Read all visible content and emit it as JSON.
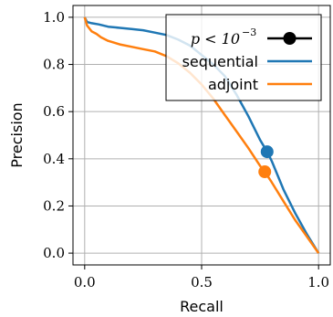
{
  "chart_data": {
    "type": "line",
    "title": "",
    "xlabel": "Recall",
    "ylabel": "Precision",
    "xlim": [
      -0.05,
      1.05
    ],
    "ylim": [
      -0.05,
      1.05
    ],
    "xticks": [
      0.0,
      0.5,
      1.0
    ],
    "xtick_labels": [
      "0.0",
      "0.5",
      "1.0"
    ],
    "yticks": [
      0.0,
      0.2,
      0.4,
      0.6,
      0.8,
      1.0
    ],
    "ytick_labels": [
      "0.0",
      "0.2",
      "0.4",
      "0.6",
      "0.8",
      "1.0"
    ],
    "grid": true,
    "legend_position": "top-right",
    "legend_marker": {
      "label": "p < 10",
      "superscript": "−3"
    },
    "series": [
      {
        "name": "sequential",
        "color": "#1f77b4",
        "x": [
          0.0,
          0.01,
          0.03,
          0.06,
          0.1,
          0.15,
          0.2,
          0.25,
          0.3,
          0.35,
          0.4,
          0.45,
          0.5,
          0.55,
          0.6,
          0.65,
          0.7,
          0.75,
          0.78,
          0.8,
          0.85,
          0.9,
          0.95,
          1.0
        ],
        "y": [
          1.0,
          0.98,
          0.975,
          0.97,
          0.96,
          0.955,
          0.95,
          0.945,
          0.935,
          0.925,
          0.905,
          0.88,
          0.84,
          0.8,
          0.75,
          0.67,
          0.58,
          0.48,
          0.43,
          0.39,
          0.27,
          0.17,
          0.08,
          0.0
        ]
      },
      {
        "name": "adjoint",
        "color": "#ff7f0e",
        "x": [
          0.0,
          0.01,
          0.03,
          0.05,
          0.07,
          0.1,
          0.15,
          0.2,
          0.25,
          0.3,
          0.35,
          0.4,
          0.45,
          0.5,
          0.55,
          0.6,
          0.65,
          0.7,
          0.75,
          0.77,
          0.8,
          0.85,
          0.9,
          0.95,
          1.0
        ],
        "y": [
          1.0,
          0.965,
          0.94,
          0.93,
          0.915,
          0.9,
          0.885,
          0.875,
          0.865,
          0.855,
          0.835,
          0.805,
          0.765,
          0.715,
          0.655,
          0.585,
          0.515,
          0.445,
          0.37,
          0.345,
          0.3,
          0.22,
          0.14,
          0.07,
          0.0
        ]
      }
    ],
    "markers": [
      {
        "series": "sequential",
        "x": 0.78,
        "y": 0.43
      },
      {
        "series": "adjoint",
        "x": 0.77,
        "y": 0.345
      }
    ]
  }
}
